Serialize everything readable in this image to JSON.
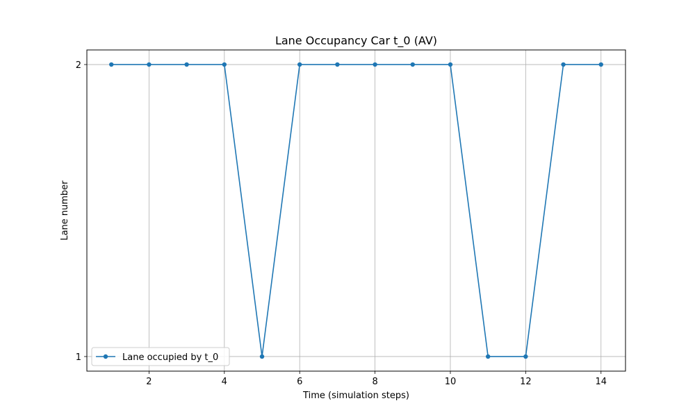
{
  "chart_data": {
    "type": "line",
    "title": "Lane Occupancy Car t_0 (AV)",
    "xlabel": "Time (simulation steps)",
    "ylabel": "Lane number",
    "xlim": [
      0.35,
      14.65
    ],
    "ylim": [
      0.95,
      2.05
    ],
    "xticks": [
      2,
      4,
      6,
      8,
      10,
      12,
      14
    ],
    "yticks": [
      1,
      2
    ],
    "grid": true,
    "legend_position": "lower-left",
    "series": [
      {
        "name": "Lane occupied by t_0",
        "color": "#1f77b4",
        "marker": "circle",
        "x": [
          1,
          2,
          3,
          4,
          5,
          6,
          7,
          8,
          9,
          10,
          11,
          12,
          13,
          14
        ],
        "y": [
          2,
          2,
          2,
          2,
          1,
          2,
          2,
          2,
          2,
          2,
          1,
          1,
          2,
          2
        ]
      }
    ]
  }
}
